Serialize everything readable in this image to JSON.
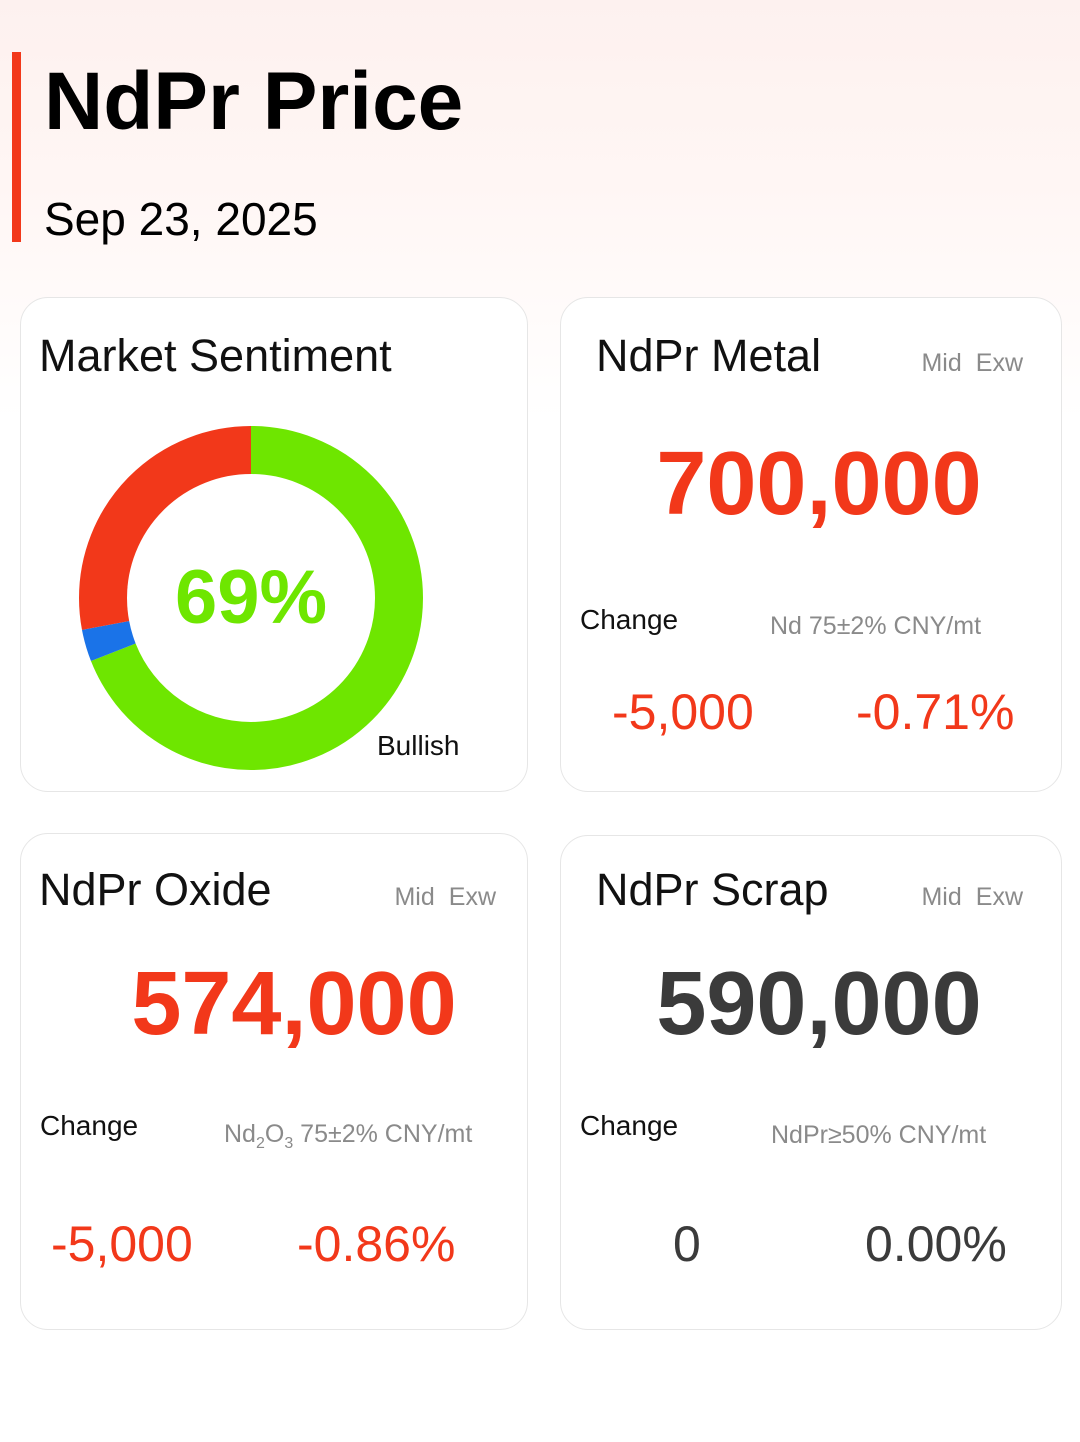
{
  "header": {
    "title": "NdPr Price",
    "date": "Sep 23, 2025",
    "accent_color": "#f2381a"
  },
  "sentiment": {
    "title": "Market Sentiment",
    "percent_label": "69%",
    "bullish_share": 0.69,
    "neutral_share": 0.03,
    "bearish_share": 0.28,
    "bullish_label": "Bullish",
    "colors": {
      "bullish": "#6ee600",
      "neutral": "#1a73e8",
      "bearish": "#f2381a"
    }
  },
  "metal": {
    "title": "NdPr Metal",
    "mid": "Mid",
    "exw": "Exw",
    "price": "700,000",
    "change_label": "Change",
    "spec": "Nd 75±2% CNY/mt",
    "change_abs": "-5,000",
    "change_pct": "-0.71%"
  },
  "oxide": {
    "title": "NdPr Oxide",
    "mid": "Mid",
    "exw": "Exw",
    "price": "574,000",
    "change_label": "Change",
    "spec_base": "Nd",
    "spec_sub1": "2",
    "spec_mid": "O",
    "spec_sub2": "3",
    "spec_rest": " 75±2% CNY/mt",
    "change_abs": "-5,000",
    "change_pct": "-0.86%"
  },
  "scrap": {
    "title": "NdPr Scrap",
    "mid": "Mid",
    "exw": "Exw",
    "price": "590,000",
    "change_label": "Change",
    "spec": "NdPr≥50% CNY/mt",
    "change_abs": "0",
    "change_pct": "0.00%"
  }
}
